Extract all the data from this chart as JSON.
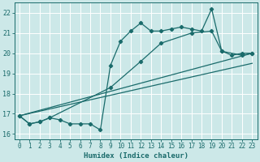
{
  "xlabel": "Humidex (Indice chaleur)",
  "bg_color": "#cce8e8",
  "grid_color": "#ffffff",
  "line_color": "#1a6b6b",
  "xlim": [
    -0.5,
    23.5
  ],
  "ylim": [
    15.75,
    22.5
  ],
  "yticks": [
    16,
    17,
    18,
    19,
    20,
    21,
    22
  ],
  "xticks": [
    0,
    1,
    2,
    3,
    4,
    5,
    6,
    7,
    8,
    9,
    10,
    11,
    12,
    13,
    14,
    15,
    16,
    17,
    18,
    19,
    20,
    21,
    22,
    23
  ],
  "line1_x": [
    0,
    1,
    2,
    3,
    4,
    5,
    6,
    7,
    8,
    9,
    10,
    11,
    12,
    13,
    14,
    15,
    16,
    17,
    18,
    19,
    20,
    21,
    22,
    23
  ],
  "line1_y": [
    16.9,
    16.5,
    16.6,
    16.8,
    16.7,
    16.5,
    16.5,
    16.5,
    16.2,
    19.4,
    20.6,
    21.1,
    21.5,
    21.1,
    21.1,
    21.2,
    21.3,
    21.2,
    21.1,
    22.2,
    20.1,
    19.9,
    20.0,
    20.0
  ],
  "line2_x": [
    0,
    1,
    2,
    3,
    9,
    12,
    14,
    17,
    19,
    20,
    22,
    23
  ],
  "line2_y": [
    16.9,
    16.5,
    16.6,
    16.8,
    18.3,
    19.6,
    20.5,
    21.0,
    21.1,
    20.1,
    19.9,
    20.0
  ],
  "line3_x": [
    0,
    23
  ],
  "line3_y": [
    16.9,
    20.0
  ],
  "line4_x": [
    0,
    23
  ],
  "line4_y": [
    16.9,
    19.5
  ],
  "tick_fontsize": 5.5,
  "xlabel_fontsize": 6.5
}
